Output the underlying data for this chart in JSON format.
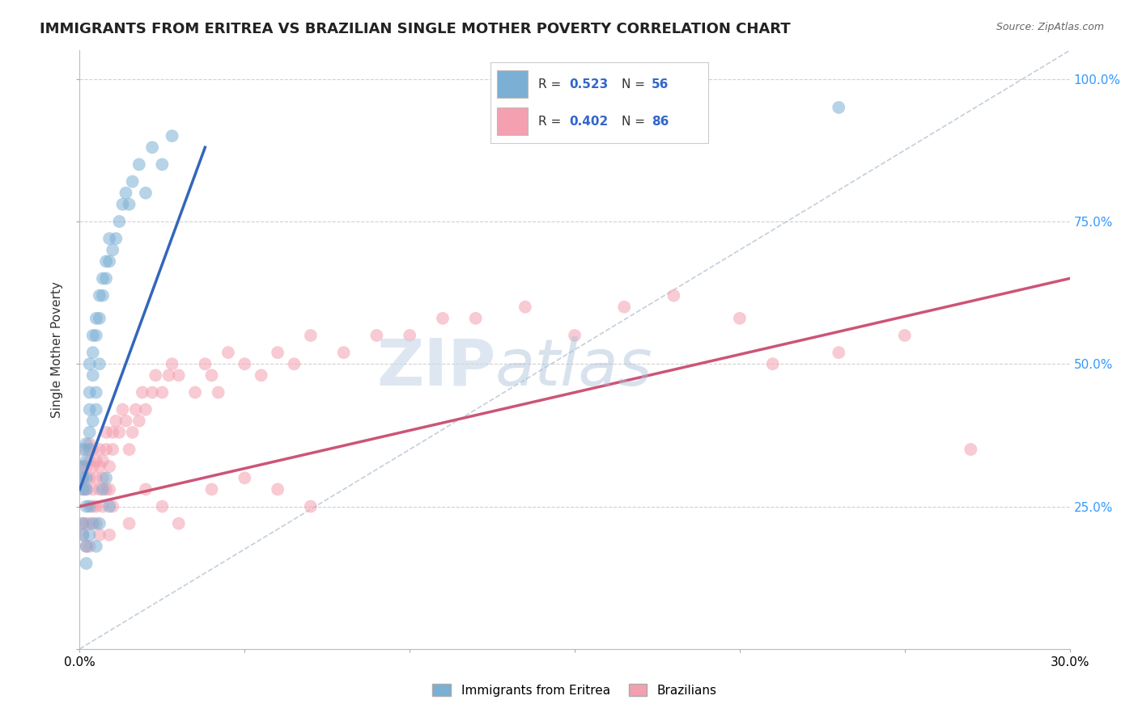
{
  "title": "IMMIGRANTS FROM ERITREA VS BRAZILIAN SINGLE MOTHER POVERTY CORRELATION CHART",
  "source": "Source: ZipAtlas.com",
  "xlabel_blue": "Immigrants from Eritrea",
  "xlabel_pink": "Brazilians",
  "ylabel": "Single Mother Poverty",
  "x_min": 0.0,
  "x_max": 0.3,
  "y_min": 0.0,
  "y_max": 1.05,
  "y_ticks": [
    0.0,
    0.25,
    0.5,
    0.75,
    1.0
  ],
  "blue_color": "#7BAFD4",
  "pink_color": "#F4A0B0",
  "blue_line_color": "#3366BB",
  "pink_line_color": "#CC5577",
  "legend_val_color": "#3366CC",
  "watermark": "ZIPatlas",
  "watermark_color": "#AABBDD",
  "right_tick_color": "#3399FF",
  "grid_color": "#CCCCCC",
  "background_color": "#FFFFFF",
  "blue_scatter_x": [
    0.001,
    0.001,
    0.001,
    0.001,
    0.002,
    0.002,
    0.002,
    0.002,
    0.002,
    0.003,
    0.003,
    0.003,
    0.003,
    0.003,
    0.004,
    0.004,
    0.004,
    0.004,
    0.005,
    0.005,
    0.005,
    0.005,
    0.006,
    0.006,
    0.006,
    0.007,
    0.007,
    0.008,
    0.008,
    0.009,
    0.009,
    0.01,
    0.011,
    0.012,
    0.013,
    0.014,
    0.015,
    0.016,
    0.018,
    0.02,
    0.022,
    0.025,
    0.028,
    0.001,
    0.001,
    0.002,
    0.002,
    0.003,
    0.003,
    0.004,
    0.005,
    0.006,
    0.007,
    0.008,
    0.009,
    0.23
  ],
  "blue_scatter_y": [
    0.32,
    0.35,
    0.28,
    0.3,
    0.3,
    0.33,
    0.36,
    0.28,
    0.25,
    0.38,
    0.42,
    0.45,
    0.5,
    0.35,
    0.48,
    0.52,
    0.55,
    0.4,
    0.55,
    0.58,
    0.45,
    0.42,
    0.58,
    0.62,
    0.5,
    0.62,
    0.65,
    0.65,
    0.68,
    0.68,
    0.72,
    0.7,
    0.72,
    0.75,
    0.78,
    0.8,
    0.78,
    0.82,
    0.85,
    0.8,
    0.88,
    0.85,
    0.9,
    0.2,
    0.22,
    0.18,
    0.15,
    0.2,
    0.25,
    0.22,
    0.18,
    0.22,
    0.28,
    0.3,
    0.25,
    0.95
  ],
  "pink_scatter_x": [
    0.001,
    0.001,
    0.001,
    0.002,
    0.002,
    0.002,
    0.003,
    0.003,
    0.003,
    0.004,
    0.004,
    0.004,
    0.005,
    0.005,
    0.005,
    0.006,
    0.006,
    0.006,
    0.007,
    0.007,
    0.008,
    0.008,
    0.009,
    0.009,
    0.01,
    0.01,
    0.011,
    0.012,
    0.013,
    0.014,
    0.015,
    0.016,
    0.017,
    0.018,
    0.019,
    0.02,
    0.022,
    0.023,
    0.025,
    0.027,
    0.028,
    0.03,
    0.035,
    0.038,
    0.04,
    0.042,
    0.045,
    0.05,
    0.055,
    0.06,
    0.065,
    0.07,
    0.08,
    0.09,
    0.1,
    0.11,
    0.12,
    0.135,
    0.15,
    0.165,
    0.18,
    0.2,
    0.001,
    0.001,
    0.002,
    0.002,
    0.003,
    0.003,
    0.004,
    0.005,
    0.006,
    0.007,
    0.008,
    0.009,
    0.01,
    0.015,
    0.02,
    0.025,
    0.03,
    0.04,
    0.05,
    0.06,
    0.07,
    0.25,
    0.27,
    0.23,
    0.21
  ],
  "pink_scatter_y": [
    0.3,
    0.28,
    0.32,
    0.28,
    0.32,
    0.35,
    0.3,
    0.33,
    0.36,
    0.28,
    0.32,
    0.35,
    0.3,
    0.33,
    0.25,
    0.28,
    0.32,
    0.35,
    0.3,
    0.33,
    0.35,
    0.38,
    0.32,
    0.28,
    0.35,
    0.38,
    0.4,
    0.38,
    0.42,
    0.4,
    0.35,
    0.38,
    0.42,
    0.4,
    0.45,
    0.42,
    0.45,
    0.48,
    0.45,
    0.48,
    0.5,
    0.48,
    0.45,
    0.5,
    0.48,
    0.45,
    0.52,
    0.5,
    0.48,
    0.52,
    0.5,
    0.55,
    0.52,
    0.55,
    0.55,
    0.58,
    0.58,
    0.6,
    0.55,
    0.6,
    0.62,
    0.58,
    0.2,
    0.22,
    0.18,
    0.22,
    0.18,
    0.22,
    0.25,
    0.22,
    0.2,
    0.25,
    0.28,
    0.2,
    0.25,
    0.22,
    0.28,
    0.25,
    0.22,
    0.28,
    0.3,
    0.28,
    0.25,
    0.55,
    0.35,
    0.52,
    0.5
  ],
  "blue_trend_x": [
    0.0,
    0.038
  ],
  "blue_trend_y": [
    0.28,
    0.88
  ],
  "pink_trend_x": [
    0.0,
    0.3
  ],
  "pink_trend_y": [
    0.25,
    0.65
  ],
  "ref_line_x": [
    0.0,
    0.3
  ],
  "ref_line_y": [
    0.0,
    1.05
  ],
  "title_fontsize": 13,
  "axis_tick_fontsize": 11,
  "axis_label_fontsize": 11
}
